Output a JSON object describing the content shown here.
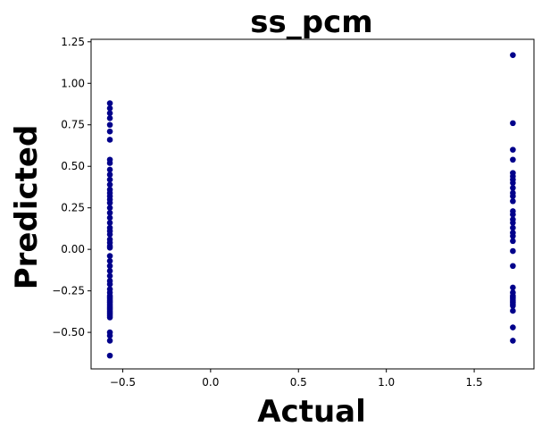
{
  "chart_data": {
    "type": "scatter",
    "title": "ss_pcm",
    "xlabel": "Actual",
    "ylabel": "Predicted",
    "xlim": [
      -0.68,
      1.84
    ],
    "ylim": [
      -0.72,
      1.265
    ],
    "xticks": [
      -0.5,
      0.0,
      0.5,
      1.0,
      1.5
    ],
    "xtick_labels": [
      "−0.5",
      "0.0",
      "0.5",
      "1.0",
      "1.5"
    ],
    "yticks": [
      -0.5,
      -0.25,
      0.0,
      0.25,
      0.5,
      0.75,
      1.0,
      1.25
    ],
    "ytick_labels": [
      "−0.50",
      "−0.25",
      "0.00",
      "0.25",
      "0.50",
      "0.75",
      "1.00",
      "1.25"
    ],
    "grid": false,
    "marker_color": "#00008b",
    "series": [
      {
        "x": [
          -0.573,
          -0.573,
          -0.573,
          -0.573,
          -0.573,
          -0.573,
          -0.573,
          -0.573,
          -0.573,
          -0.573,
          -0.573,
          -0.573,
          -0.573,
          -0.573,
          -0.573,
          -0.573,
          -0.573,
          -0.573,
          -0.573,
          -0.573,
          -0.573,
          -0.573,
          -0.573,
          -0.573,
          -0.573,
          -0.573,
          -0.573,
          -0.573,
          -0.573,
          -0.573,
          -0.573,
          -0.573,
          -0.573,
          -0.573,
          -0.573,
          -0.573,
          -0.573,
          -0.573,
          -0.573,
          -0.573,
          -0.573,
          -0.573,
          -0.573,
          -0.573,
          -0.573,
          -0.573,
          -0.573,
          -0.573,
          -0.573,
          -0.573,
          -0.573,
          -0.573,
          -0.573,
          -0.573,
          -0.573,
          -0.573,
          1.72,
          1.72,
          1.72,
          1.72,
          1.72,
          1.72,
          1.72,
          1.72,
          1.72,
          1.72,
          1.72,
          1.72,
          1.72,
          1.72,
          1.72,
          1.72,
          1.72,
          1.72,
          1.72,
          1.72,
          1.72,
          1.72,
          1.72,
          1.72,
          1.72,
          1.72,
          1.72,
          1.72,
          1.72,
          1.72,
          1.72,
          1.72,
          1.72,
          1.72
        ],
        "y": [
          0.88,
          0.85,
          0.82,
          0.79,
          0.75,
          0.71,
          0.66,
          0.54,
          0.52,
          0.48,
          0.45,
          0.42,
          0.39,
          0.36,
          0.34,
          0.32,
          0.3,
          0.28,
          0.25,
          0.22,
          0.19,
          0.16,
          0.13,
          0.11,
          0.09,
          0.06,
          0.04,
          0.02,
          0.01,
          -0.04,
          -0.07,
          -0.1,
          -0.13,
          -0.16,
          -0.19,
          -0.21,
          -0.24,
          -0.26,
          -0.28,
          -0.29,
          -0.3,
          -0.31,
          -0.32,
          -0.33,
          -0.34,
          -0.35,
          -0.36,
          -0.37,
          -0.38,
          -0.39,
          -0.4,
          -0.41,
          -0.5,
          -0.52,
          -0.55,
          -0.64,
          1.17,
          0.76,
          0.6,
          0.54,
          0.46,
          0.44,
          0.42,
          0.4,
          0.37,
          0.34,
          0.32,
          0.29,
          0.23,
          0.21,
          0.18,
          0.16,
          0.13,
          0.1,
          0.08,
          0.05,
          -0.01,
          -0.1,
          -0.23,
          -0.26,
          -0.28,
          -0.29,
          -0.3,
          -0.31,
          -0.32,
          -0.33,
          -0.34,
          -0.37,
          -0.47,
          -0.55
        ]
      }
    ]
  }
}
